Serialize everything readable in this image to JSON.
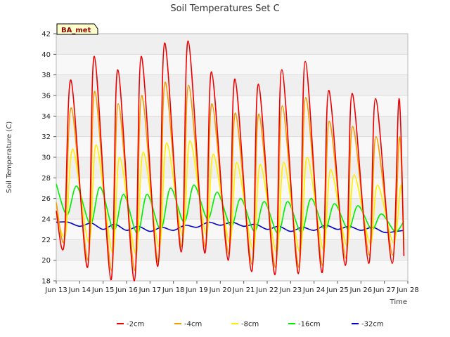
{
  "chart_data": {
    "type": "line",
    "title": "Soil Temperatures Set C",
    "xlabel": "Time",
    "ylabel": "Soil Temperature (C)",
    "badge": "BA_met",
    "ylim": [
      18,
      42
    ],
    "yticks": [
      18,
      20,
      22,
      24,
      26,
      28,
      30,
      32,
      34,
      36,
      38,
      40,
      42
    ],
    "xlim": [
      "2024-06-13",
      "2024-06-28"
    ],
    "xticks": [
      "Jun 13",
      "Jun 14",
      "Jun 15",
      "Jun 16",
      "Jun 17",
      "Jun 18",
      "Jun 19",
      "Jun 20",
      "Jun 21",
      "Jun 22",
      "Jun 23",
      "Jun 24",
      "Jun 25",
      "Jun 26",
      "Jun 27",
      "Jun 28"
    ],
    "xtick_dates": [
      "2024-06-13",
      "2024-06-14",
      "2024-06-15",
      "2024-06-16",
      "2024-06-17",
      "2024-06-18",
      "2024-06-19",
      "2024-06-20",
      "2024-06-21",
      "2024-06-22",
      "2024-06-23",
      "2024-06-24",
      "2024-06-25",
      "2024-06-26",
      "2024-06-27",
      "2024-06-28"
    ],
    "grid": "horizontal bands",
    "legend": "bottom",
    "series": [
      {
        "name": "-2cm",
        "color": "#ee0000",
        "x": [
          "2024-06-13 00:00",
          "2024-06-13 08:00",
          "2024-06-13 15:00",
          "2024-06-14 08:00",
          "2024-06-14 15:00",
          "2024-06-15 08:00",
          "2024-06-15 15:00",
          "2024-06-16 08:00",
          "2024-06-16 15:00",
          "2024-06-17 08:00",
          "2024-06-17 15:00",
          "2024-06-18 08:00",
          "2024-06-18 15:00",
          "2024-06-19 08:00",
          "2024-06-19 15:00",
          "2024-06-20 08:00",
          "2024-06-20 15:00",
          "2024-06-21 08:00",
          "2024-06-21 15:00",
          "2024-06-22 08:00",
          "2024-06-22 15:00",
          "2024-06-23 08:00",
          "2024-06-23 15:00",
          "2024-06-24 08:00",
          "2024-06-24 15:00",
          "2024-06-25 08:00",
          "2024-06-25 15:00",
          "2024-06-26 08:00",
          "2024-06-26 15:00",
          "2024-06-27 08:00",
          "2024-06-27 15:00",
          "2024-06-27 20:00"
        ],
        "y": [
          24.8,
          21.5,
          37.5,
          19.3,
          39.8,
          18.1,
          38.5,
          18.0,
          39.8,
          19.4,
          41.1,
          20.8,
          41.3,
          20.7,
          38.3,
          20.0,
          37.6,
          18.9,
          37.1,
          18.6,
          38.5,
          18.7,
          39.3,
          18.8,
          36.5,
          19.5,
          36.2,
          19.7,
          35.7,
          19.7,
          35.7,
          20.4
        ]
      },
      {
        "name": "-4cm",
        "color": "#f39c00",
        "x": [
          "2024-06-13 00:00",
          "2024-06-13 08:30",
          "2024-06-13 15:30",
          "2024-06-14 08:30",
          "2024-06-14 15:30",
          "2024-06-15 08:30",
          "2024-06-15 15:30",
          "2024-06-16 08:30",
          "2024-06-16 15:30",
          "2024-06-17 08:30",
          "2024-06-17 15:30",
          "2024-06-18 08:30",
          "2024-06-18 15:30",
          "2024-06-19 08:30",
          "2024-06-19 15:30",
          "2024-06-20 08:30",
          "2024-06-20 15:30",
          "2024-06-21 08:30",
          "2024-06-21 15:30",
          "2024-06-22 08:30",
          "2024-06-22 15:30",
          "2024-06-23 08:30",
          "2024-06-23 15:30",
          "2024-06-24 08:30",
          "2024-06-24 15:30",
          "2024-06-25 08:30",
          "2024-06-25 15:30",
          "2024-06-26 08:30",
          "2024-06-26 15:30",
          "2024-06-27 08:30",
          "2024-06-27 15:30",
          "2024-06-27 20:00"
        ],
        "y": [
          25.6,
          22.0,
          34.8,
          20.0,
          36.4,
          19.0,
          35.2,
          19.0,
          36.0,
          19.9,
          37.3,
          21.3,
          37.0,
          21.3,
          35.2,
          20.6,
          34.3,
          19.6,
          34.2,
          19.3,
          35.0,
          19.3,
          35.8,
          19.5,
          33.5,
          20.2,
          33.0,
          20.5,
          32.0,
          20.5,
          32.0,
          21.0
        ]
      },
      {
        "name": "-8cm",
        "color": "#ffee00",
        "x": [
          "2024-06-13 00:00",
          "2024-06-13 09:30",
          "2024-06-13 17:00",
          "2024-06-14 09:30",
          "2024-06-14 17:00",
          "2024-06-15 09:30",
          "2024-06-15 17:00",
          "2024-06-16 09:30",
          "2024-06-16 17:00",
          "2024-06-17 09:30",
          "2024-06-17 17:00",
          "2024-06-18 09:30",
          "2024-06-18 17:00",
          "2024-06-19 09:30",
          "2024-06-19 17:00",
          "2024-06-20 09:30",
          "2024-06-20 17:00",
          "2024-06-21 09:30",
          "2024-06-21 17:00",
          "2024-06-22 09:30",
          "2024-06-22 17:00",
          "2024-06-23 09:30",
          "2024-06-23 17:00",
          "2024-06-24 09:30",
          "2024-06-24 17:00",
          "2024-06-25 09:30",
          "2024-06-25 17:00",
          "2024-06-26 09:30",
          "2024-06-26 17:00",
          "2024-06-27 09:30",
          "2024-06-27 17:00",
          "2024-06-27 20:00"
        ],
        "y": [
          24.5,
          22.5,
          30.8,
          21.7,
          31.2,
          20.8,
          30.0,
          20.6,
          30.5,
          21.3,
          31.4,
          22.4,
          31.6,
          22.5,
          30.3,
          21.7,
          29.5,
          21.0,
          29.3,
          20.8,
          29.5,
          20.8,
          30.0,
          21.0,
          28.8,
          21.4,
          28.3,
          21.6,
          27.3,
          21.7,
          27.3,
          22.0
        ]
      },
      {
        "name": "-16cm",
        "color": "#00ee00",
        "x": [
          "2024-06-13 00:00",
          "2024-06-13 11:00",
          "2024-06-13 21:00",
          "2024-06-14 11:00",
          "2024-06-14 21:00",
          "2024-06-15 11:00",
          "2024-06-15 21:00",
          "2024-06-16 11:00",
          "2024-06-16 21:00",
          "2024-06-17 11:00",
          "2024-06-17 21:00",
          "2024-06-18 11:00",
          "2024-06-18 21:00",
          "2024-06-19 11:00",
          "2024-06-19 21:00",
          "2024-06-20 11:00",
          "2024-06-20 21:00",
          "2024-06-21 11:00",
          "2024-06-21 21:00",
          "2024-06-22 11:00",
          "2024-06-22 21:00",
          "2024-06-23 11:00",
          "2024-06-23 21:00",
          "2024-06-24 11:00",
          "2024-06-24 21:00",
          "2024-06-25 11:00",
          "2024-06-25 21:00",
          "2024-06-26 11:00",
          "2024-06-26 21:00",
          "2024-06-27 11:00",
          "2024-06-27 20:00"
        ],
        "y": [
          27.4,
          24.4,
          27.2,
          23.5,
          27.1,
          22.9,
          26.4,
          22.6,
          26.4,
          23.0,
          27.0,
          23.7,
          27.3,
          24.0,
          26.6,
          23.3,
          26.0,
          22.8,
          25.7,
          22.6,
          25.7,
          22.7,
          26.0,
          23.0,
          25.5,
          23.0,
          25.3,
          23.0,
          24.5,
          22.8,
          23.8
        ]
      },
      {
        "name": "-32cm",
        "color": "#0000cc",
        "x": [
          "2024-06-13 00:00",
          "2024-06-13 12:00",
          "2024-06-14 00:00",
          "2024-06-14 12:00",
          "2024-06-15 00:00",
          "2024-06-15 12:00",
          "2024-06-16 00:00",
          "2024-06-16 12:00",
          "2024-06-17 00:00",
          "2024-06-17 12:00",
          "2024-06-18 00:00",
          "2024-06-18 12:00",
          "2024-06-19 00:00",
          "2024-06-19 12:00",
          "2024-06-20 00:00",
          "2024-06-20 12:00",
          "2024-06-21 00:00",
          "2024-06-21 12:00",
          "2024-06-22 00:00",
          "2024-06-22 12:00",
          "2024-06-23 00:00",
          "2024-06-23 12:00",
          "2024-06-24 00:00",
          "2024-06-24 12:00",
          "2024-06-25 00:00",
          "2024-06-25 12:00",
          "2024-06-26 00:00",
          "2024-06-26 12:00",
          "2024-06-27 00:00",
          "2024-06-27 12:00",
          "2024-06-27 20:00"
        ],
        "y": [
          23.7,
          23.7,
          23.3,
          23.6,
          23.0,
          23.5,
          22.9,
          23.3,
          22.8,
          23.2,
          22.9,
          23.4,
          23.2,
          23.7,
          23.4,
          23.7,
          23.3,
          23.5,
          23.0,
          23.3,
          22.8,
          23.2,
          22.9,
          23.4,
          23.0,
          23.3,
          22.9,
          23.2,
          22.7,
          22.8,
          22.9
        ]
      }
    ]
  }
}
